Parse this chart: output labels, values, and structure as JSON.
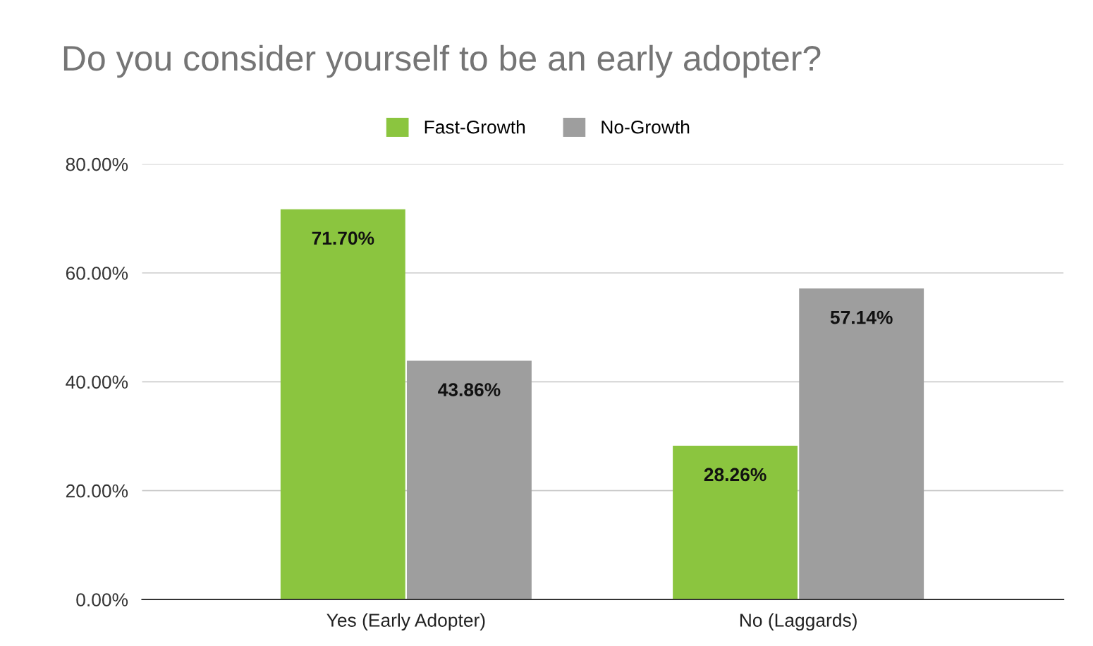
{
  "chart_data": {
    "type": "bar",
    "title": "Do you consider yourself to be an early adopter?",
    "categories": [
      "Yes (Early Adopter)",
      "No (Laggards)"
    ],
    "series": [
      {
        "name": "Fast-Growth",
        "color": "#8bc53f",
        "values": [
          71.7,
          28.26
        ],
        "value_labels": [
          "71.70%",
          "28.26%"
        ]
      },
      {
        "name": "No-Growth",
        "color": "#9e9e9e",
        "values": [
          43.86,
          57.14
        ],
        "value_labels": [
          "43.86%",
          "57.14%"
        ]
      }
    ],
    "ylim": [
      0,
      80
    ],
    "yticks": [
      {
        "value": 0,
        "label": "0.00%"
      },
      {
        "value": 20,
        "label": "20.00%"
      },
      {
        "value": 40,
        "label": "40.00%"
      },
      {
        "value": 60,
        "label": "60.00%"
      },
      {
        "value": 80,
        "label": "80.00%"
      }
    ],
    "grid": "y",
    "legend": "top"
  }
}
